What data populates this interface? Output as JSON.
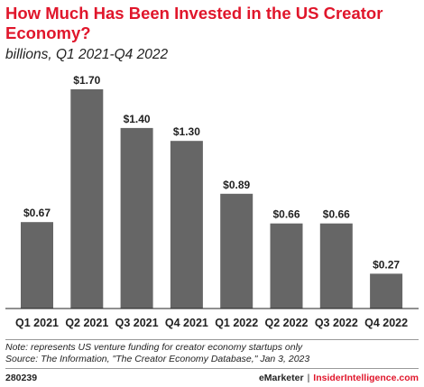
{
  "header": {
    "title": "How Much Has Been Invested in the US Creator Economy?",
    "subtitle": "billions, Q1 2021-Q4 2022"
  },
  "chart_data": {
    "type": "bar",
    "categories": [
      "Q1 2021",
      "Q2 2021",
      "Q3 2021",
      "Q4 2021",
      "Q1 2022",
      "Q2 2022",
      "Q3 2022",
      "Q4 2022"
    ],
    "values": [
      0.67,
      1.7,
      1.4,
      1.3,
      0.89,
      0.66,
      0.66,
      0.27
    ],
    "data_labels": [
      "$0.67",
      "$1.70",
      "$1.40",
      "$1.30",
      "$0.89",
      "$0.66",
      "$0.66",
      "$0.27"
    ],
    "title": "How Much Has Been Invested in the US Creator Economy?",
    "subtitle": "billions, Q1 2021-Q4 2022",
    "xlabel": "",
    "ylabel": "",
    "ylim": [
      0,
      1.7
    ],
    "grid": false,
    "legend": "none",
    "bar_color": "#666666"
  },
  "notes": {
    "note": "Note: represents US venture funding for creator economy startups only",
    "source": "Source: The Information, \"The Creator Economy Database,\" Jan 3, 2023"
  },
  "footer": {
    "id": "280239",
    "brand_emarketer": "eMarketer",
    "separator": "|",
    "brand_insider": "InsiderIntelligence.com"
  },
  "colors": {
    "title_red": "#e0162b",
    "bar": "#666666"
  }
}
